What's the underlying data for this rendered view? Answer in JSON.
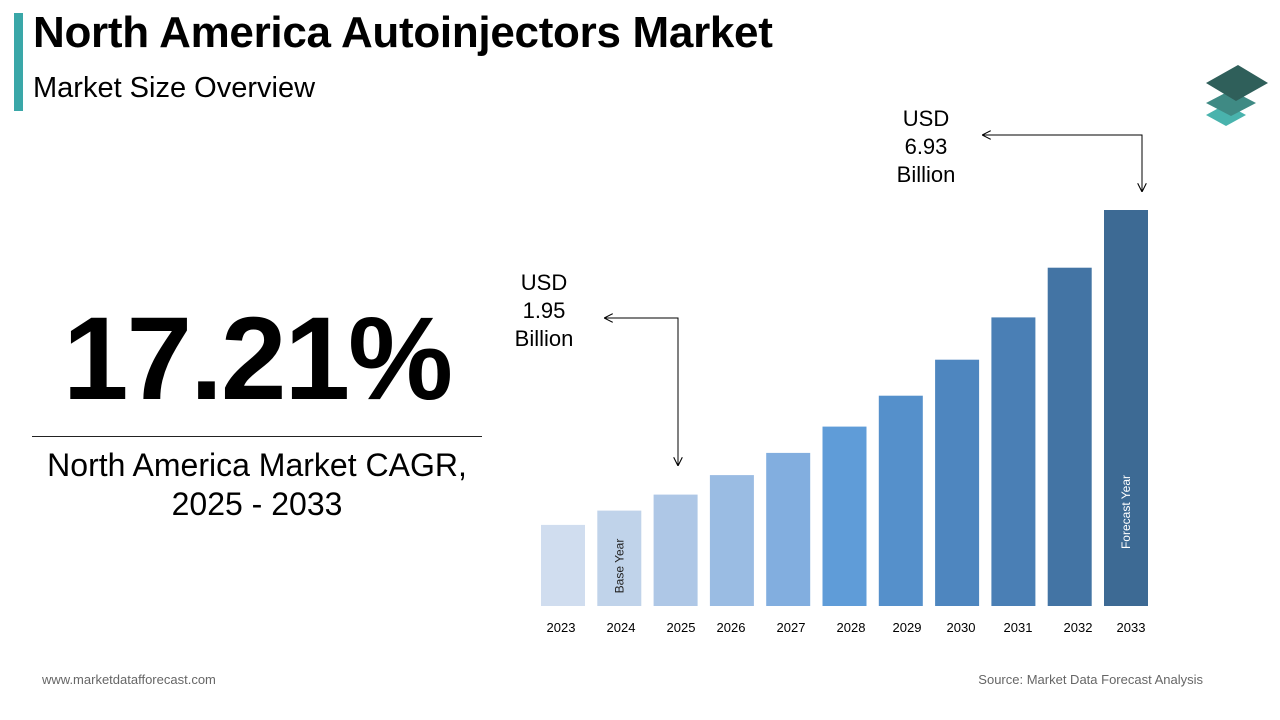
{
  "header": {
    "title": "North America Autoinjectors Market",
    "subtitle": "Market Size Overview"
  },
  "cagr": {
    "value": "17.21%",
    "label_line1": "North America Market CAGR,",
    "label_line2": "2025 - 2033"
  },
  "callouts": {
    "start": {
      "line1": "USD",
      "line2": "1.95",
      "line3": "Billion"
    },
    "end": {
      "line1": "USD",
      "line2": "6.93",
      "line3": "Billion"
    }
  },
  "footer": {
    "website": "www.marketdatafforecast.com",
    "source": "Source: Market Data Forecast Analysis"
  },
  "colors": {
    "accent": "#3aa7a8",
    "logo_dark": "#2f5f5a",
    "logo_mid": "#3f8a84",
    "logo_light": "#49b3ad"
  },
  "chart_data": {
    "type": "bar",
    "categories": [
      "2023",
      "2024",
      "2025",
      "2026",
      "2027",
      "2028",
      "2029",
      "2030",
      "2031",
      "2032",
      "2033"
    ],
    "values": [
      1.42,
      1.67,
      1.95,
      2.29,
      2.68,
      3.14,
      3.68,
      4.31,
      5.05,
      5.92,
      6.93
    ],
    "unit": "USD Billion",
    "bar_colors": [
      "#d0ddef",
      "#c0d3ea",
      "#aec7e6",
      "#9abce3",
      "#82aedf",
      "#5f9cd8",
      "#5590cb",
      "#4e86bf",
      "#4a7fb5",
      "#4374a4",
      "#3d6a94"
    ],
    "bar_labels": {
      "2024": "Base Year",
      "2033": "Forecast Year"
    },
    "ylim": [
      0,
      6.93
    ]
  }
}
